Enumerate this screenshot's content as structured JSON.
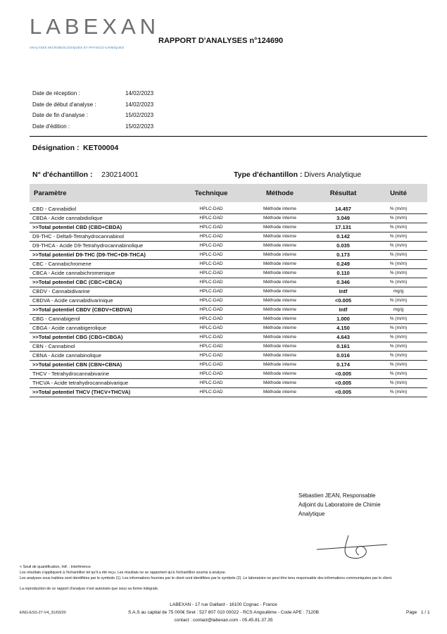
{
  "header": {
    "logo": "LABEXAN",
    "tagline": "ANALYSES MICROBIOLOGIQUES ET PHYSICO-CHIMIQUES",
    "title": "RAPPORT D'ANALYSES n°124690"
  },
  "dates": [
    [
      "Date de réception :",
      "14/02/2023"
    ],
    [
      "Date de début d'analyse :",
      "14/02/2023"
    ],
    [
      "Date de fin d'analyse :",
      "15/02/2023"
    ],
    [
      "Date d'édition :",
      "15/02/2023"
    ]
  ],
  "designation": {
    "label": "Désignation :",
    "value": "KET00004"
  },
  "sample": {
    "number_label": "N° d'échantillon :",
    "number": "230214001",
    "type_label": "Type d'échantillon :",
    "type": "Divers Analytique"
  },
  "table": {
    "headers": [
      "Paramètre",
      "Technique",
      "Méthode",
      "Résultat",
      "Unité"
    ],
    "rows": [
      [
        "CBD - Cannabidiol",
        "HPLC-DAD",
        "Méthode interne",
        "14.457",
        "% (m/m)"
      ],
      [
        "CBDA - Acide cannabidiolique",
        "HPLC-DAD",
        "Méthode interne",
        "3.049",
        "% (m/m)"
      ],
      [
        ">>Total potentiel CBD (CBD+CBDA)",
        "HPLC-DAD",
        "Méthode interne",
        "17.131",
        "% (m/m)"
      ],
      [
        "D9-THC - Delta9-Tetrahydrocannabinol",
        "HPLC-DAD",
        "Méthode interne",
        "0.142",
        "% (m/m)"
      ],
      [
        "D9-THCA - Acide D9-Tetrahydrocannabinolique",
        "HPLC-DAD",
        "Méthode interne",
        "0.035",
        "% (m/m)"
      ],
      [
        ">>Total potentiel D9-THC (D9-THC+D9-THCA)",
        "HPLC-DAD",
        "Méthode interne",
        "0.173",
        "% (m/m)"
      ],
      [
        "CBC - Cannabichromene",
        "HPLC-DAD",
        "Méthode interne",
        "0.249",
        "% (m/m)"
      ],
      [
        "CBCA - Acide cannabichromenique",
        "HPLC-DAD",
        "Méthode interne",
        "0.110",
        "% (m/m)"
      ],
      [
        ">>Total potentiel CBC (CBC+CBCA)",
        "HPLC-DAD",
        "Méthode interne",
        "0.346",
        "% (m/m)"
      ],
      [
        "CBDV - Cannabidivarine",
        "HPLC-DAD",
        "Méthode interne",
        "Intf",
        "mg/g"
      ],
      [
        "CBDVA - Acide cannabidivarinique",
        "HPLC-DAD",
        "Méthode interne",
        "<0.005",
        "% (m/m)"
      ],
      [
        ">>Total potentiel CBDV (CBDV+CBDVA)",
        "HPLC-DAD",
        "Méthode interne",
        "Intf",
        "mg/g"
      ],
      [
        "CBG - Cannabigerol",
        "HPLC-DAD",
        "Méthode interne",
        "1.000",
        "% (m/m)"
      ],
      [
        "CBGA - Acide cannabigerolique",
        "HPLC-DAD",
        "Méthode interne",
        "4.150",
        "% (m/m)"
      ],
      [
        ">>Total potentiel CBG (CBG+CBGA)",
        "HPLC-DAD",
        "Méthode interne",
        "4.643",
        "% (m/m)"
      ],
      [
        "CBN - Cannabinol",
        "HPLC-DAD",
        "Méthode interne",
        "0.161",
        "% (m/m)"
      ],
      [
        "CBNA - Acide cannabinolique",
        "HPLC-DAD",
        "Méthode interne",
        "0.016",
        "% (m/m)"
      ],
      [
        ">>Total potentiel CBN (CBN+CBNA)",
        "HPLC-DAD",
        "Méthode interne",
        "0.174",
        "% (m/m)"
      ],
      [
        "THCV - Tetrahydrocannabivarine",
        "HPLC-DAD",
        "Méthode interne",
        "<0.005",
        "% (m/m)"
      ],
      [
        "THCVA - Acide tetrahydrocannabivarique",
        "HPLC-DAD",
        "Méthode interne",
        "<0.005",
        "% (m/m)"
      ],
      [
        ">>Total potentiel THCV (THCV+THCVA)",
        "HPLC-DAD",
        "Méthode interne",
        "<0.005",
        "% (m/m)"
      ]
    ]
  },
  "signature": [
    "Sébastien JEAN, Responsable",
    "Adjoint du Laboratoire de Chimie",
    "Analytique"
  ],
  "notes": [
    "< Seuil de quantification, Intf. : Interférence",
    "Les résultats s'appliquent à l'échantillon tel qu'il a été reçu. Les résultats ne se rapportent qu'à l'échantillon soumis à analyse.",
    "Les analyses sous traitées sont identifiées par le symbole (1). Les informations fournies par le client sont identifiées par le symbole (2). Le laboratoire ne peut être tenu responsable des informations communiquées par le client.",
    "La reproduction de ce rapport d'analyse n'est autorisée que sous sa forme intégrale."
  ],
  "footer": {
    "reference": "ENG-ESS-27-V4_31/03/20",
    "address": [
      "LABEXAN - 17 rue Gaillard - 16100 Cognac - France",
      "S.A.S au capital de 75 000€ Siret : 527 807 010 00022 - RCS Angoulême - Code APE : 7120B",
      "contact : contact@labexan.com - 05.45.81.37.35"
    ],
    "page_label": "Page",
    "page": "1 / 1"
  }
}
